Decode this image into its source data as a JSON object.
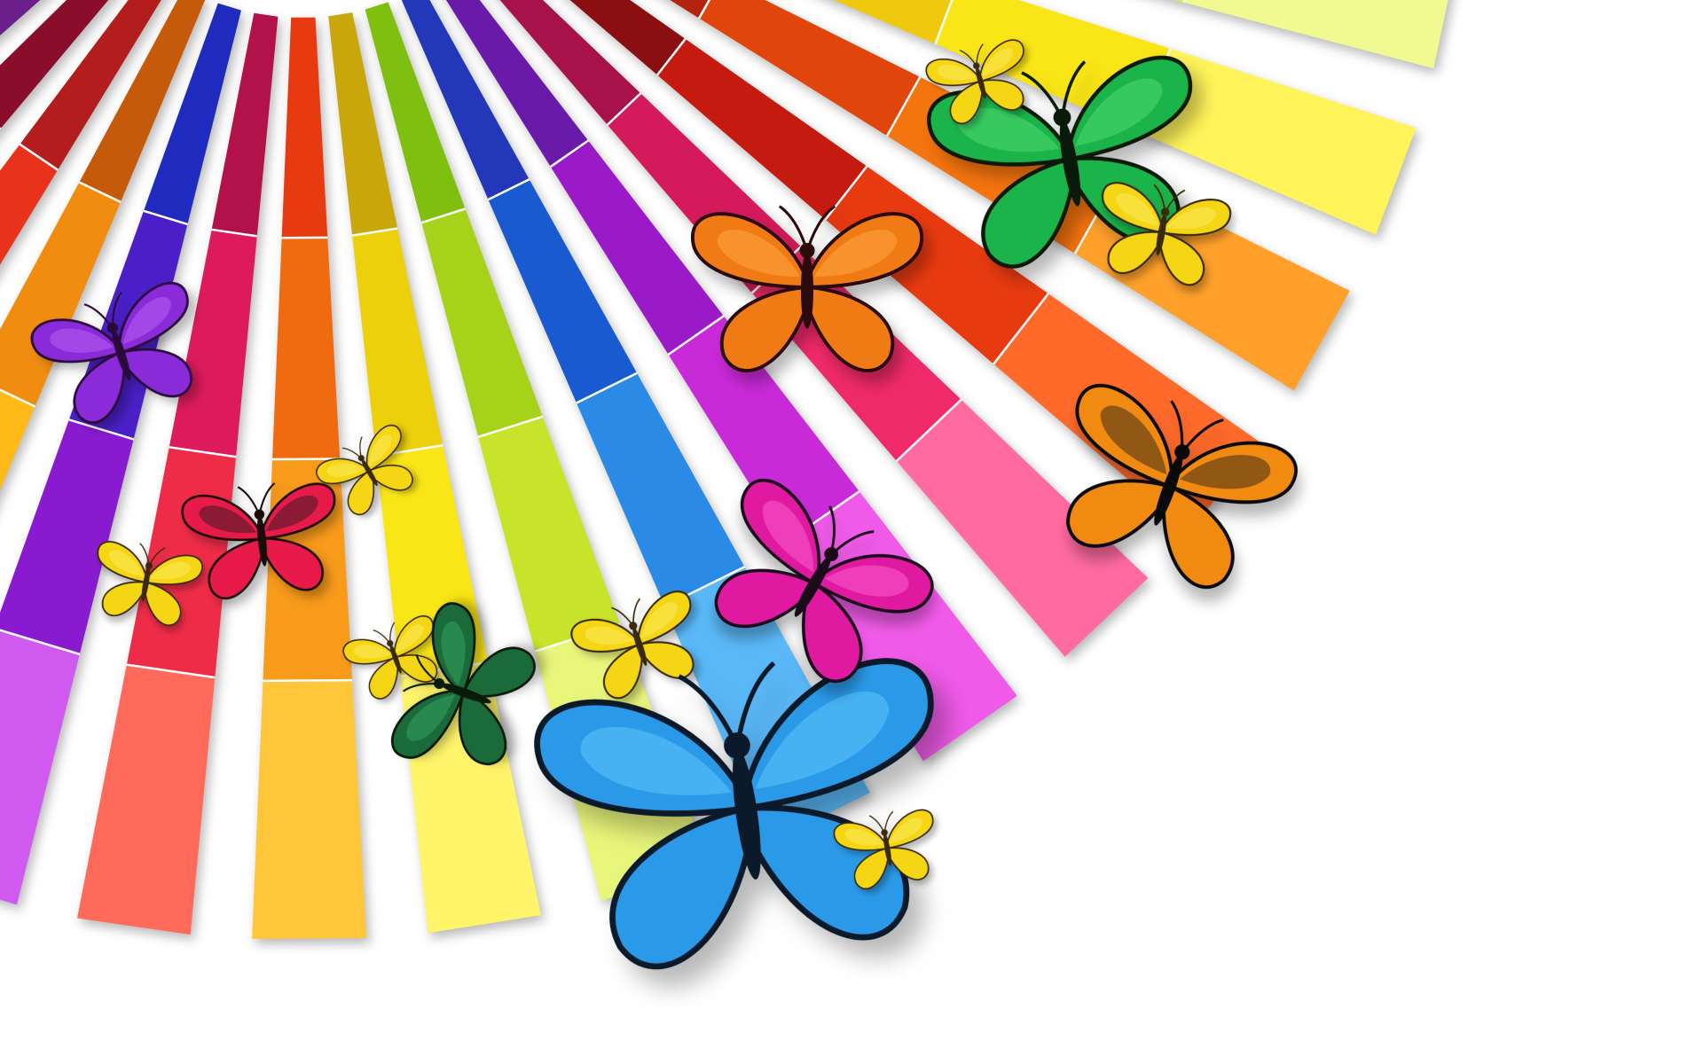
{
  "scene": {
    "description_free": true,
    "background": "#ffffff",
    "fan": {
      "swatch_colors": [
        [
          "#6b0d1a",
          "#d66b10",
          "#eac80e",
          "#f4f6a0"
        ],
        [
          "#6a1f8a",
          "#2a2ab8",
          "#0a6ad0",
          "#6ad2f6"
        ],
        [
          "#8a0d2c",
          "#e00a6a",
          "#f01a8a",
          "#f86ad8"
        ],
        [
          "#b41d1d",
          "#e8321c",
          "#ff5a1e",
          "#ff9a3c"
        ],
        [
          "#c45a0a",
          "#f08c10",
          "#ffba1a",
          "#ffe04a"
        ],
        [
          "#1f2bbf",
          "#4a1fc8",
          "#8a1ad0",
          "#d05af0"
        ],
        [
          "#b3114a",
          "#dd1b5c",
          "#ef2c48",
          "#ff6a5a"
        ],
        [
          "#e83a10",
          "#f06a10",
          "#f89a1a",
          "#ffc63a"
        ],
        [
          "#c9a60a",
          "#ecd00c",
          "#fae616",
          "#fff46a"
        ],
        [
          "#7fbf10",
          "#a6d21a",
          "#c8e42a",
          "#e8f67a"
        ],
        [
          "#2238b8",
          "#1a5ad0",
          "#2a8ae6",
          "#5ab8f8"
        ],
        [
          "#6a1aa8",
          "#9a1ac8",
          "#c82ad8",
          "#f05ae8"
        ],
        [
          "#a8124a",
          "#d41a5a",
          "#ef2a6a",
          "#ff6aa0"
        ],
        [
          "#8b0f10",
          "#c41a10",
          "#e83a10",
          "#ff6a2a"
        ],
        [
          "#b4240c",
          "#e0460c",
          "#f4740e",
          "#ffa02a"
        ],
        [
          "#d8a00a",
          "#f0c80e",
          "#fae616",
          "#fff45a"
        ],
        [
          "#9ccc10",
          "#c0e010",
          "#dcf040",
          "#f0fa90"
        ]
      ]
    },
    "butterflies": [
      {
        "name": "butterfly-purple",
        "wing": "#8a2ad8",
        "body": "#2a0a3a",
        "accent": "#c06af8"
      },
      {
        "name": "butterfly-red-small",
        "wing": "#e81a4a",
        "body": "#1a0a0a",
        "accent": "#1a1a1a"
      },
      {
        "name": "butterfly-yellow-1",
        "wing": "#f4d614",
        "body": "#3a2a0a",
        "accent": "#fff06a"
      },
      {
        "name": "butterfly-yellow-2",
        "wing": "#f4d614",
        "body": "#3a2a0a",
        "accent": "#fff06a"
      },
      {
        "name": "butterfly-yellow-3",
        "wing": "#f4d614",
        "body": "#3a2a0a",
        "accent": "#fff06a"
      },
      {
        "name": "butterfly-dark-green",
        "wing": "#1a6a3a",
        "body": "#0a1a0a",
        "accent": "#3ab06a"
      },
      {
        "name": "butterfly-yellow-4",
        "wing": "#f4d614",
        "body": "#3a2a0a",
        "accent": "#fff06a"
      },
      {
        "name": "butterfly-blue-morpho",
        "wing": "#2a9ae8",
        "body": "#0a1a2a",
        "accent": "#6ad0ff"
      },
      {
        "name": "butterfly-yellow-5",
        "wing": "#f4d614",
        "body": "#3a2a0a",
        "accent": "#fff06a"
      },
      {
        "name": "butterfly-pink",
        "wing": "#e01aa0",
        "body": "#1a0a1a",
        "accent": "#ff6ad8"
      },
      {
        "name": "butterfly-orange",
        "wing": "#f07a14",
        "body": "#2a0a0a",
        "accent": "#ffb04a"
      },
      {
        "name": "butterfly-monarch",
        "wing": "#f08a10",
        "body": "#0a0a0a",
        "accent": "#1a1a1a"
      },
      {
        "name": "butterfly-green",
        "wing": "#1ab44a",
        "body": "#0a1a0a",
        "accent": "#5ae07a"
      },
      {
        "name": "butterfly-yellow-6",
        "wing": "#f4d614",
        "body": "#3a2a0a",
        "accent": "#fff06a"
      },
      {
        "name": "butterfly-yellow-7",
        "wing": "#f4d614",
        "body": "#3a2a0a",
        "accent": "#fff06a"
      }
    ]
  }
}
